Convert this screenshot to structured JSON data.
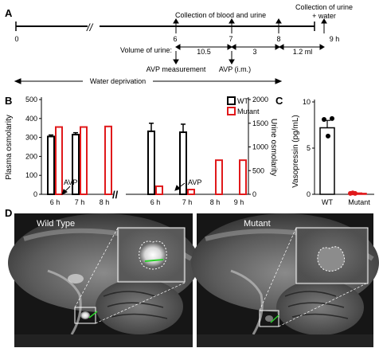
{
  "panelA": {
    "letter": "A",
    "hours": [
      "0",
      "6",
      "7",
      "8",
      "9 h"
    ],
    "top_labels": [
      "Collection of blood and urine",
      "Collection of urine",
      "+ water"
    ],
    "middle_labels": [
      "Volume of urine:",
      "10.5",
      "3",
      "1.2 ml"
    ],
    "bottom_labels": [
      "AVP measurement",
      "AVP (i.m.)"
    ],
    "water_deprivation": "Water deprivation"
  },
  "panelB": {
    "letter": "B",
    "ylabel_left": "Plasma osmolarity",
    "ylabel_right": "Urine osmolarity",
    "legend": [
      "WT",
      "Mutant"
    ],
    "avp_label": "AVP",
    "chart_data": [
      {
        "type": "bar",
        "title": "",
        "ylabel": "Plasma osmolarity",
        "ylim": [
          0,
          500
        ],
        "yticks": [
          "0",
          "100",
          "200",
          "300",
          "400",
          "500"
        ],
        "categories": [
          "6 h",
          "7 h",
          "8 h"
        ],
        "series": [
          {
            "name": "WT",
            "values": [
              305,
              315,
              null
            ],
            "errors": [
              8,
              10,
              null
            ]
          },
          {
            "name": "Mutant",
            "values": [
              355,
              355,
              358
            ]
          }
        ]
      },
      {
        "type": "bar",
        "title": "",
        "ylabel": "Urine osmolarity",
        "ylim": [
          0,
          2000
        ],
        "yticks": [
          "0",
          "500",
          "1000",
          "1500",
          "2000"
        ],
        "categories": [
          "6 h",
          "7 h",
          "8 h",
          "9 h"
        ],
        "series": [
          {
            "name": "WT",
            "values": [
              1330,
              1310,
              null,
              null
            ],
            "errors": [
              170,
              170,
              null,
              null
            ]
          },
          {
            "name": "Mutant",
            "values": [
              170,
              100,
              720,
              720
            ]
          }
        ]
      }
    ]
  },
  "panelC": {
    "letter": "C",
    "ylabel": "Vasopressin (pg/mL)",
    "chart_data": {
      "type": "bar",
      "title": "",
      "ylabel": "Vasopressin (pg/mL)",
      "ylim": [
        0,
        10
      ],
      "yticks": [
        "0",
        "5",
        "10"
      ],
      "categories": [
        "WT",
        "Mutant"
      ],
      "values": [
        7.2,
        0.1
      ],
      "errors": [
        0.8,
        0.05
      ],
      "points": [
        [
          8.1,
          8.2,
          6.3
        ],
        [
          0.1,
          0.15,
          0.1
        ]
      ]
    }
  },
  "panelD": {
    "letter": "D",
    "labels": [
      "Wild Type",
      "Mutant"
    ]
  },
  "colors": {
    "wt": "#000000",
    "mutant": "#e0191b",
    "scale": "#2bd12b"
  }
}
